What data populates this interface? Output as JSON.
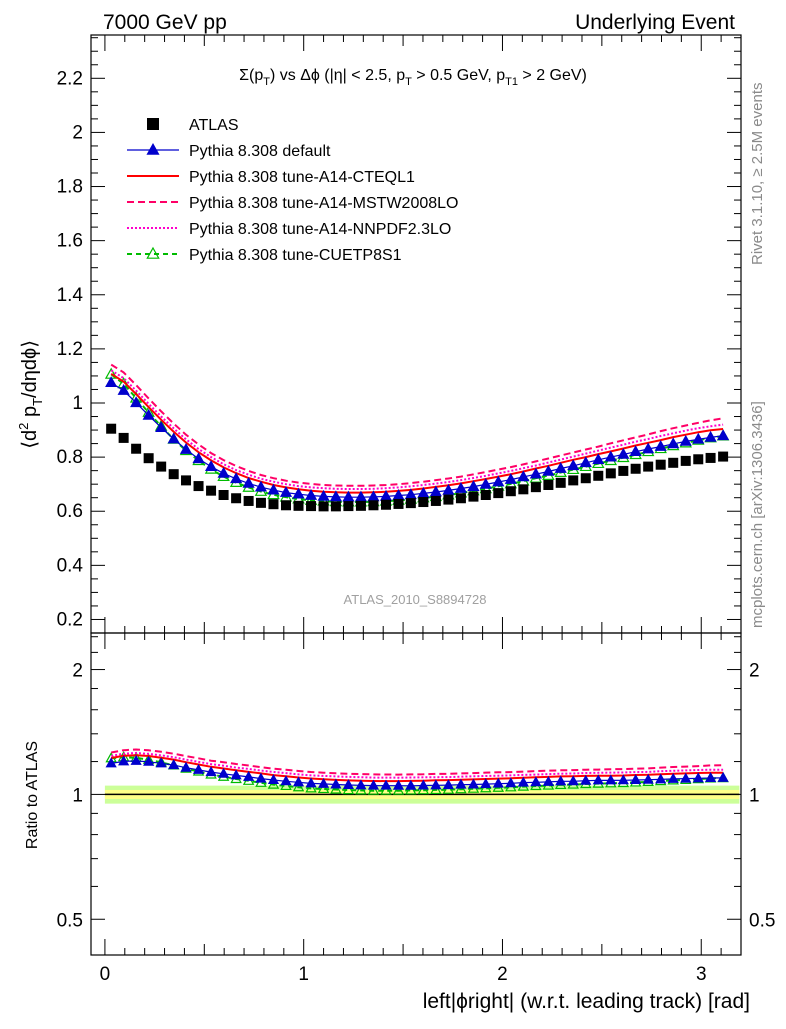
{
  "header": {
    "left": "7000 GeV pp",
    "right": "Underlying Event"
  },
  "side_notes": {
    "rivet": "Rivet 3.1.10, ≥ 2.5M events",
    "mcplots": "mcplots.cern.ch [arXiv:1306.3436]"
  },
  "watermark": "ATLAS_2010_S8894728",
  "colors": {
    "atlas": "#000000",
    "default": "#0000cc",
    "cteql1": "#ff0000",
    "mstw": "#ff0066",
    "nnpdf": "#ff00cc",
    "cuetp8s1": "#00bb00",
    "band_inner": "#ffff88",
    "band_outer": "#ccff99"
  },
  "chart_data": [
    {
      "type": "line",
      "title": "Σ(p_T) vs Δφ (|η| < 2.5, p_T > 0.5 GeV, p_T1 > 2 GeV)",
      "ylabel": "⟨d² p_T/dηdφ⟩",
      "xlabel": "",
      "xlim": [
        -0.07,
        3.2
      ],
      "ylim": [
        0.15,
        2.36
      ],
      "yticks": [
        "0.2",
        "0.4",
        "0.6",
        "0.8",
        "1",
        "1.2",
        "1.4",
        "1.6",
        "1.8",
        "2",
        "2.2"
      ],
      "x": [
        0.0314,
        0.0942,
        0.157,
        0.22,
        0.283,
        0.346,
        0.408,
        0.471,
        0.534,
        0.597,
        0.66,
        0.723,
        0.785,
        0.848,
        0.911,
        0.974,
        1.037,
        1.1,
        1.162,
        1.225,
        1.288,
        1.351,
        1.414,
        1.477,
        1.539,
        1.602,
        1.665,
        1.728,
        1.791,
        1.854,
        1.916,
        1.979,
        2.042,
        2.105,
        2.168,
        2.231,
        2.293,
        2.356,
        2.419,
        2.482,
        2.545,
        2.608,
        2.67,
        2.733,
        2.796,
        2.859,
        2.922,
        2.985,
        3.047,
        3.11
      ],
      "series": [
        {
          "name": "ATLAS",
          "key": "atlas",
          "marker": "square",
          "values": [
            0.905,
            0.871,
            0.831,
            0.796,
            0.765,
            0.737,
            0.714,
            0.693,
            0.676,
            0.66,
            0.648,
            0.638,
            0.631,
            0.626,
            0.622,
            0.62,
            0.619,
            0.618,
            0.618,
            0.619,
            0.62,
            0.622,
            0.624,
            0.627,
            0.63,
            0.634,
            0.638,
            0.643,
            0.648,
            0.654,
            0.66,
            0.667,
            0.674,
            0.681,
            0.689,
            0.697,
            0.705,
            0.714,
            0.722,
            0.731,
            0.74,
            0.749,
            0.757,
            0.765,
            0.772,
            0.779,
            0.786,
            0.792,
            0.797,
            0.802
          ]
        },
        {
          "name": "Pythia 8.308 default",
          "key": "default",
          "marker": "triangle",
          "values": [
            1.075,
            1.046,
            1.001,
            0.954,
            0.909,
            0.867,
            0.828,
            0.794,
            0.765,
            0.74,
            0.72,
            0.703,
            0.689,
            0.678,
            0.669,
            0.663,
            0.658,
            0.655,
            0.653,
            0.652,
            0.652,
            0.653,
            0.655,
            0.658,
            0.661,
            0.666,
            0.671,
            0.677,
            0.684,
            0.691,
            0.699,
            0.708,
            0.717,
            0.727,
            0.737,
            0.747,
            0.758,
            0.768,
            0.779,
            0.79,
            0.8,
            0.81,
            0.82,
            0.83,
            0.839,
            0.849,
            0.858,
            0.866,
            0.873,
            0.879
          ]
        },
        {
          "name": "Pythia 8.308 tune-A14-CTEQL1",
          "key": "cteql1",
          "line": "solid",
          "values": [
            1.108,
            1.079,
            1.033,
            0.985,
            0.938,
            0.894,
            0.854,
            0.818,
            0.788,
            0.762,
            0.741,
            0.723,
            0.709,
            0.697,
            0.688,
            0.681,
            0.676,
            0.672,
            0.67,
            0.669,
            0.669,
            0.67,
            0.672,
            0.675,
            0.679,
            0.684,
            0.69,
            0.696,
            0.703,
            0.711,
            0.719,
            0.728,
            0.737,
            0.747,
            0.758,
            0.768,
            0.779,
            0.79,
            0.8,
            0.811,
            0.821,
            0.832,
            0.843,
            0.853,
            0.863,
            0.874,
            0.883,
            0.892,
            0.899,
            0.904
          ]
        },
        {
          "name": "Pythia 8.308 tune-A14-MSTW2008LO",
          "key": "mstw",
          "line": "dashed",
          "values": [
            1.142,
            1.113,
            1.066,
            1.017,
            0.969,
            0.924,
            0.883,
            0.847,
            0.815,
            0.789,
            0.767,
            0.749,
            0.734,
            0.722,
            0.713,
            0.706,
            0.701,
            0.697,
            0.695,
            0.694,
            0.694,
            0.695,
            0.697,
            0.7,
            0.704,
            0.709,
            0.715,
            0.721,
            0.728,
            0.736,
            0.745,
            0.754,
            0.763,
            0.773,
            0.784,
            0.795,
            0.806,
            0.817,
            0.828,
            0.839,
            0.851,
            0.862,
            0.873,
            0.884,
            0.896,
            0.907,
            0.917,
            0.927,
            0.936,
            0.943
          ]
        },
        {
          "name": "Pythia 8.308 tune-A14-NNPDF2.3LO",
          "key": "nnpdf",
          "line": "dotted",
          "values": [
            1.121,
            1.092,
            1.046,
            0.997,
            0.95,
            0.906,
            0.866,
            0.83,
            0.8,
            0.774,
            0.752,
            0.735,
            0.72,
            0.709,
            0.7,
            0.693,
            0.688,
            0.685,
            0.683,
            0.682,
            0.682,
            0.683,
            0.685,
            0.688,
            0.692,
            0.697,
            0.702,
            0.708,
            0.715,
            0.723,
            0.731,
            0.74,
            0.749,
            0.759,
            0.769,
            0.78,
            0.791,
            0.802,
            0.813,
            0.824,
            0.835,
            0.846,
            0.857,
            0.867,
            0.878,
            0.888,
            0.898,
            0.907,
            0.914,
            0.92
          ]
        },
        {
          "name": "Pythia 8.308 tune-CUETP8S1",
          "key": "cuetp8s1",
          "marker": "triangle-open",
          "line": "dashed",
          "values": [
            1.106,
            1.071,
            1.018,
            0.965,
            0.914,
            0.866,
            0.824,
            0.787,
            0.755,
            0.728,
            0.706,
            0.688,
            0.673,
            0.661,
            0.652,
            0.645,
            0.64,
            0.637,
            0.635,
            0.634,
            0.634,
            0.635,
            0.637,
            0.64,
            0.644,
            0.649,
            0.654,
            0.66,
            0.667,
            0.675,
            0.683,
            0.692,
            0.701,
            0.711,
            0.722,
            0.732,
            0.743,
            0.754,
            0.765,
            0.776,
            0.787,
            0.798,
            0.809,
            0.82,
            0.831,
            0.842,
            0.852,
            0.862,
            0.871,
            0.878
          ]
        }
      ],
      "legend": "top-left"
    },
    {
      "type": "line",
      "title": "",
      "xlabel": "left|ϕright| (w.r.t. leading track) [rad]",
      "ylabel": "Ratio to ATLAS",
      "yscale": "log",
      "ylim": [
        0.41,
        2.45
      ],
      "yticks": [
        "0.5",
        "1",
        "2"
      ],
      "xlim": [
        -0.07,
        3.2
      ],
      "xticks": [
        "0",
        "1",
        "2",
        "3"
      ],
      "reference_band": {
        "inner": [
          0.975,
          1.025
        ],
        "outer": [
          0.95,
          1.05
        ]
      },
      "series_keys": [
        "default",
        "cteql1",
        "mstw",
        "nnpdf",
        "cuetp8s1"
      ],
      "note": "ratio values = series values / ATLAS values"
    }
  ]
}
